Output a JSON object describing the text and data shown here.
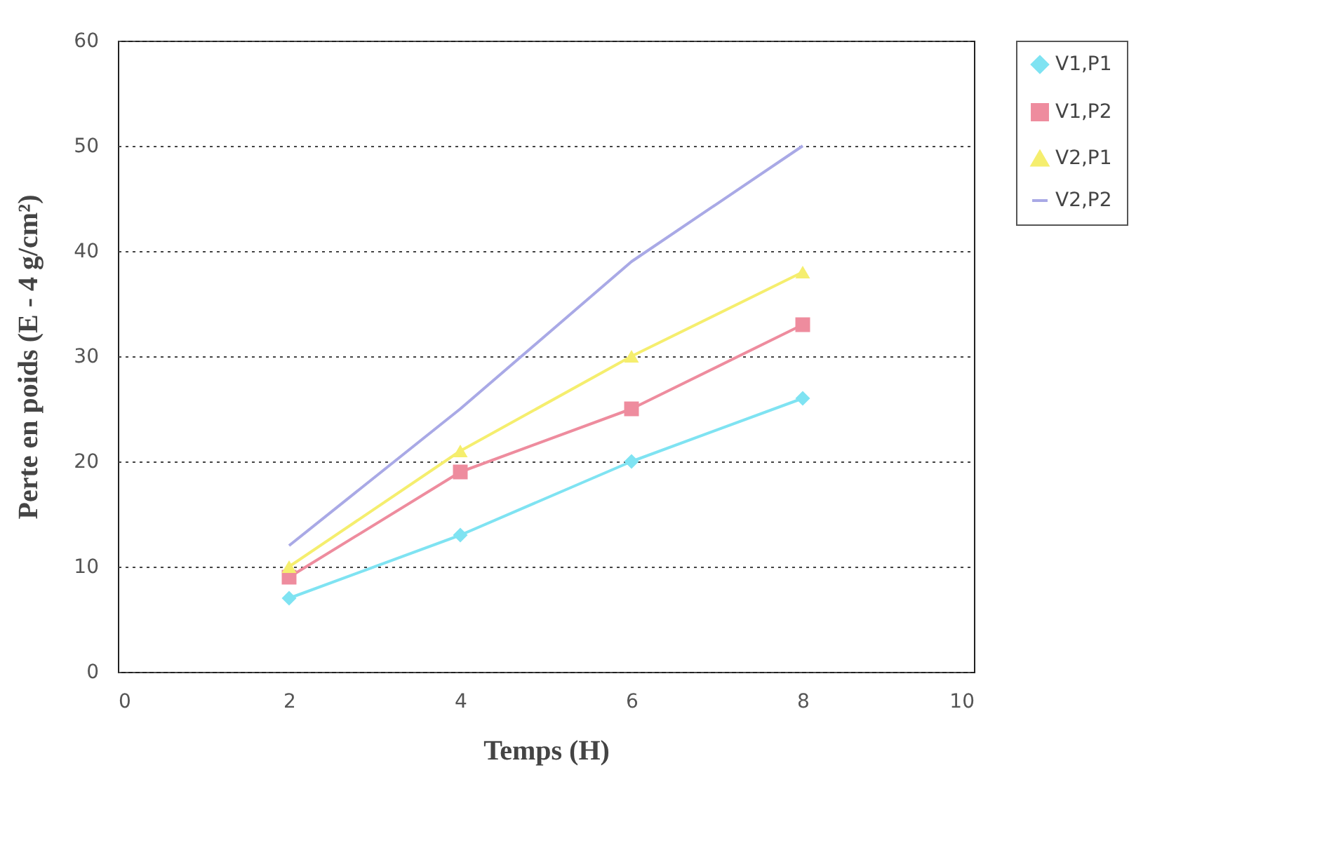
{
  "chart_data": {
    "type": "line",
    "xlabel": "Temps (H)",
    "ylabel": "Perte en poids (E - 4 g/cm²)",
    "x": [
      2,
      4,
      6,
      8
    ],
    "series": [
      {
        "name": "V1,P1",
        "color": "#7fe3f2",
        "marker": "diamond",
        "values": [
          7,
          13,
          20,
          26
        ]
      },
      {
        "name": "V1,P2",
        "color": "#ee8c9e",
        "marker": "square",
        "values": [
          9,
          19,
          25,
          33
        ]
      },
      {
        "name": "V2,P1",
        "color": "#f5ee6e",
        "marker": "triangle",
        "values": [
          10,
          21,
          30,
          38
        ]
      },
      {
        "name": "V2,P2",
        "color": "#a9a9e6",
        "marker": "none",
        "values": [
          12,
          25,
          39,
          50
        ]
      }
    ],
    "xlim": [
      0,
      10
    ],
    "xticks": [
      0,
      2,
      4,
      6,
      8,
      10
    ],
    "ylim": [
      0,
      60
    ],
    "yticks": [
      0,
      10,
      20,
      30,
      40,
      50,
      60
    ],
    "grid": "y",
    "legend": "right"
  }
}
